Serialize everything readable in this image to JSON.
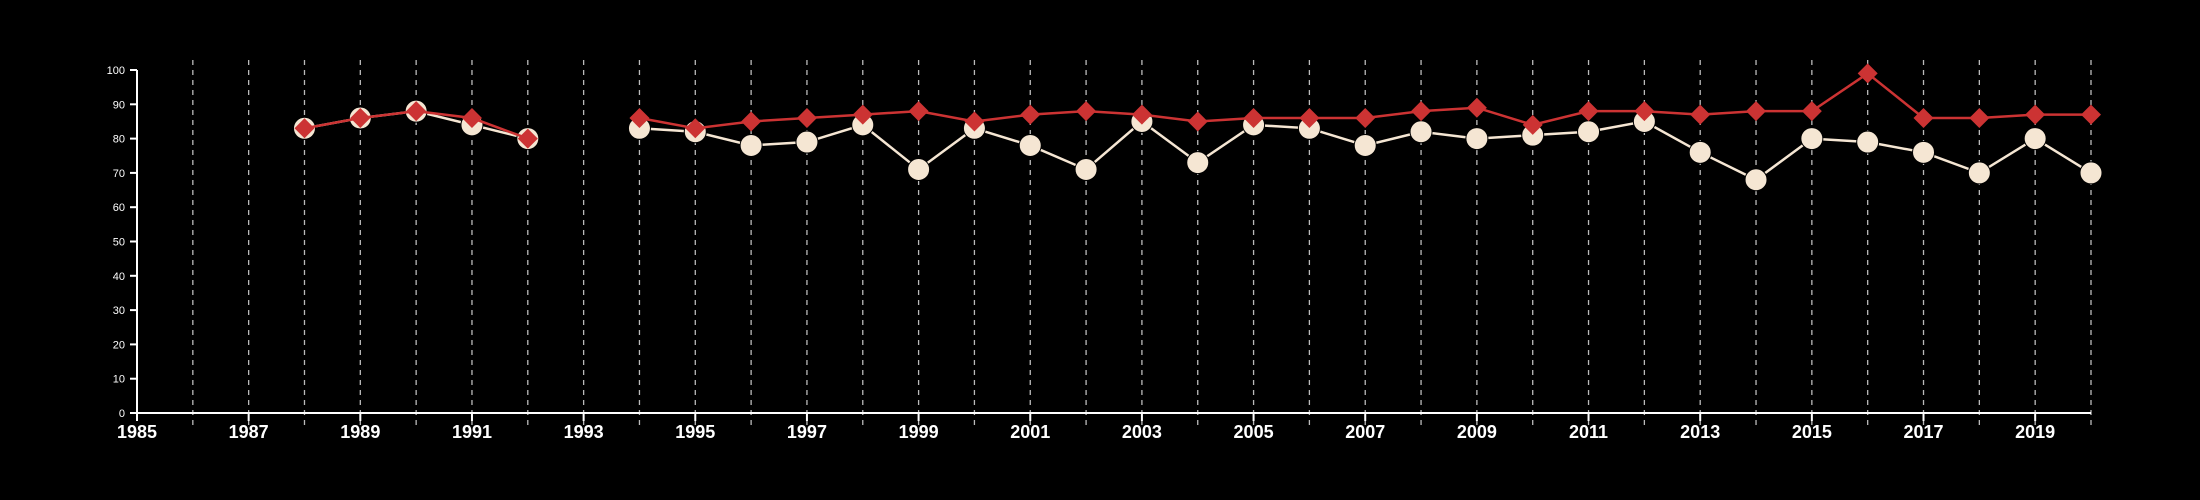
{
  "chart_data": {
    "type": "line",
    "title": "",
    "xlabel": "",
    "ylabel": "",
    "xlim": [
      1985,
      2020
    ],
    "ylim": [
      0,
      100
    ],
    "y_ticks": [
      0,
      10,
      20,
      30,
      40,
      50,
      60,
      70,
      80,
      90,
      100
    ],
    "x_ticks": [
      1985,
      1987,
      1989,
      1991,
      1993,
      1995,
      1997,
      1999,
      2001,
      2003,
      2005,
      2007,
      2009,
      2011,
      2013,
      2015,
      2017,
      2019
    ],
    "grid": "vertical dashed, one per year",
    "legend": "none",
    "background_color": "#000000",
    "x": [
      1988,
      1989,
      1990,
      1991,
      1992,
      1994,
      1995,
      1996,
      1997,
      1998,
      1999,
      2000,
      2001,
      2002,
      2003,
      2004,
      2005,
      2006,
      2007,
      2008,
      2009,
      2010,
      2011,
      2012,
      2013,
      2014,
      2015,
      2016,
      2017,
      2018,
      2019,
      2020
    ],
    "series": [
      {
        "color": "#f5e6d3",
        "marker": "circle",
        "values": [
          83,
          86,
          88,
          84,
          80,
          83,
          82,
          78,
          79,
          84,
          71,
          83,
          78,
          71,
          85,
          73,
          84,
          83,
          78,
          82,
          80,
          81,
          82,
          85,
          76,
          68,
          80,
          79,
          76,
          70,
          80,
          70
        ]
      },
      {
        "color": "#cc3333",
        "marker": "diamond",
        "values": [
          83,
          86,
          88,
          86,
          80,
          86,
          83,
          85,
          86,
          87,
          88,
          85,
          87,
          88,
          87,
          85,
          86,
          86,
          86,
          88,
          89,
          84,
          88,
          88,
          87,
          88,
          88,
          99,
          86,
          86,
          87,
          87
        ]
      }
    ]
  }
}
